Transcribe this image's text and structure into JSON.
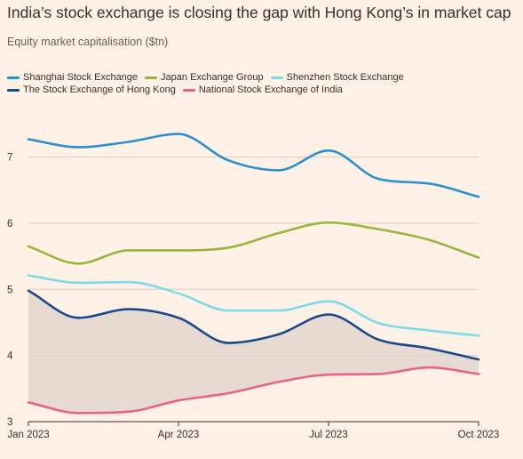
{
  "header": {
    "title": "India’s stock exchange is closing the gap with Hong Kong’s in market cap",
    "subtitle": "Equity market capitalisation ($tn)"
  },
  "chart_data": {
    "type": "line",
    "title": "India’s stock exchange is closing the gap with Hong Kong’s in market cap",
    "ylabel": "Equity market capitalisation ($tn)",
    "xlabel": "",
    "ylim": [
      3,
      7.6
    ],
    "yticks": [
      3,
      4,
      5,
      6,
      7
    ],
    "x": [
      "2023-01",
      "2023-02",
      "2023-03",
      "2023-04",
      "2023-05",
      "2023-06",
      "2023-07",
      "2023-08",
      "2023-09",
      "2023-10"
    ],
    "xticks": [
      {
        "x": "2023-01",
        "label": "Jan 2023"
      },
      {
        "x": "2023-04",
        "label": "Apr 2023"
      },
      {
        "x": "2023-07",
        "label": "Jul 2023"
      },
      {
        "x": "2023-10",
        "label": "Oct 2023"
      }
    ],
    "grid": true,
    "legend_position": "top",
    "shaded_between": {
      "upper": "The Stock Exchange of Hong Kong",
      "lower": "National Stock Exchange of India",
      "color": "#e6dad1"
    },
    "series": [
      {
        "name": "Shanghai Stock Exchange",
        "color": "#2a90cf",
        "values": [
          7.27,
          7.15,
          7.23,
          7.35,
          6.95,
          6.8,
          7.1,
          6.67,
          6.6,
          6.4
        ]
      },
      {
        "name": "Japan Exchange Group",
        "color": "#96b73f",
        "values": [
          5.65,
          5.39,
          5.59,
          5.59,
          5.63,
          5.85,
          6.01,
          5.91,
          5.75,
          5.48
        ]
      },
      {
        "name": "Shenzhen Stock Exchange",
        "color": "#7cdbea",
        "values": [
          5.21,
          5.1,
          5.11,
          4.94,
          4.68,
          4.68,
          4.82,
          4.49,
          4.38,
          4.3
        ]
      },
      {
        "name": "The Stock Exchange of Hong Kong",
        "color": "#1a4a8c",
        "values": [
          4.98,
          4.57,
          4.7,
          4.57,
          4.19,
          4.32,
          4.62,
          4.24,
          4.11,
          3.94
        ]
      },
      {
        "name": "National Stock Exchange of India",
        "color": "#e8638a",
        "values": [
          3.29,
          3.13,
          3.15,
          3.32,
          3.43,
          3.6,
          3.71,
          3.72,
          3.82,
          3.72
        ]
      }
    ]
  }
}
